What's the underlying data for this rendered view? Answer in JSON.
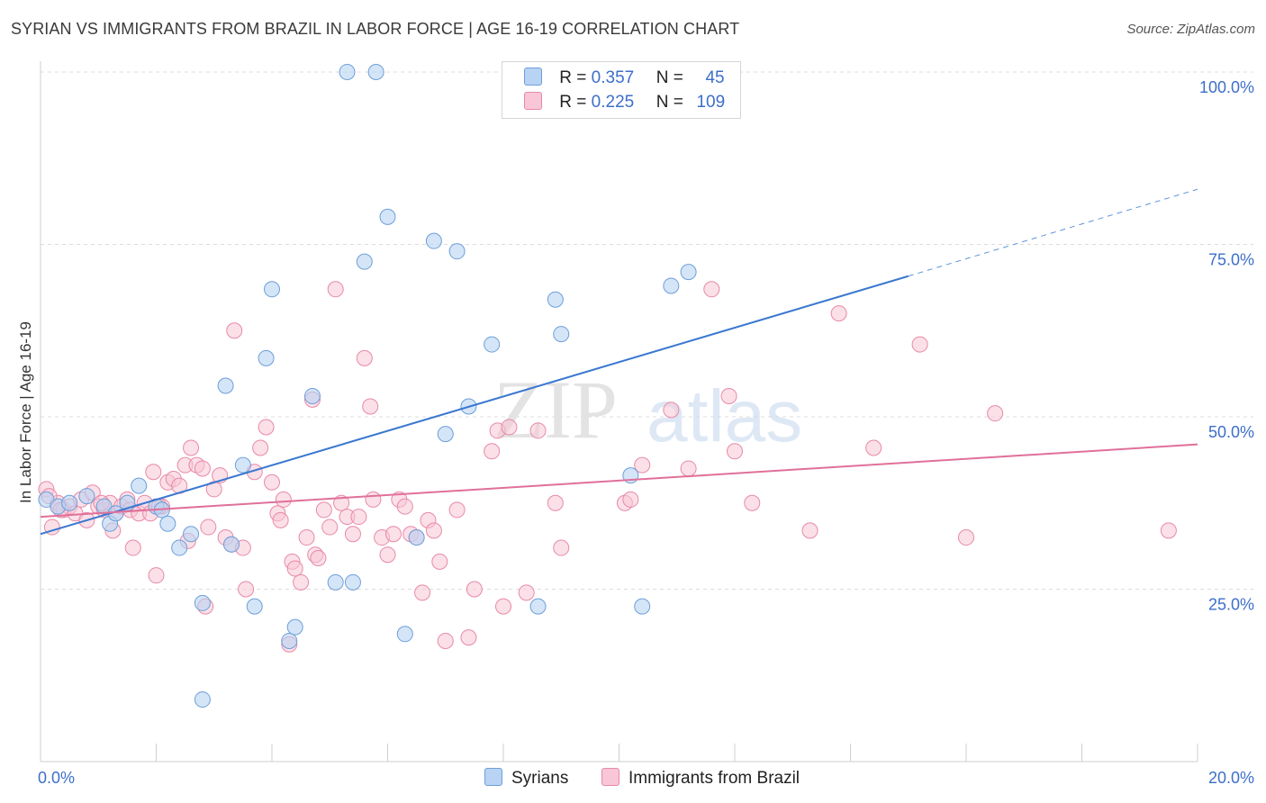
{
  "header": {
    "title": "SYRIAN VS IMMIGRANTS FROM BRAZIL IN LABOR FORCE | AGE 16-19 CORRELATION CHART",
    "source": "Source: ZipAtlas.com"
  },
  "colors": {
    "syrians_fill": "#b8d3f3",
    "syrians_stroke": "#6e9fd8",
    "syrians_line": "#3a78d0",
    "brazil_fill": "#f8c6d6",
    "brazil_stroke": "#e889a8",
    "brazil_line": "#e0709a",
    "tick_text": "#3d6fc9"
  },
  "legend": {
    "syrians": {
      "r_label": "R =",
      "r_value": "0.357",
      "n_label": "N =",
      "n_value": "45"
    },
    "brazil": {
      "r_label": "R =",
      "r_value": "0.225",
      "n_label": "N =",
      "n_value": "109"
    }
  },
  "bottom_legend": {
    "syrians": "Syrians",
    "brazil": "Immigrants from Brazil"
  },
  "watermark": {
    "zip": "ZIP",
    "atlas": "atlas"
  },
  "chart_data": {
    "type": "scatter",
    "title": "SYRIAN VS IMMIGRANTS FROM BRAZIL IN LABOR FORCE | AGE 16-19 CORRELATION CHART",
    "xlabel": "",
    "ylabel": "In Labor Force | Age 16-19",
    "xlim": [
      0,
      20
    ],
    "ylim": [
      0,
      100
    ],
    "x_tick_labels": [
      {
        "value": 0,
        "label": "0.0%"
      },
      {
        "value": 20,
        "label": "20.0%"
      }
    ],
    "y_tick_labels": [
      {
        "value": 25,
        "label": "25.0%"
      },
      {
        "value": 50,
        "label": "50.0%"
      },
      {
        "value": 75,
        "label": "75.0%"
      },
      {
        "value": 100,
        "label": "100.0%"
      }
    ],
    "series": [
      {
        "name": "Syrians",
        "r": 0.357,
        "n": 45,
        "trend": {
          "x0": 0,
          "y0": 33.0,
          "x1": 15.0,
          "y1": 70.4,
          "dashed_to_x": 20.0,
          "dashed_to_y": 83.0
        },
        "points": [
          [
            0.1,
            38.0
          ],
          [
            0.3,
            37.0
          ],
          [
            0.5,
            37.5
          ],
          [
            0.8,
            38.5
          ],
          [
            1.1,
            37.0
          ],
          [
            1.2,
            34.5
          ],
          [
            1.5,
            37.5
          ],
          [
            1.7,
            40.0
          ],
          [
            2.0,
            37.0
          ],
          [
            2.1,
            36.5
          ],
          [
            2.2,
            34.5
          ],
          [
            2.4,
            31.0
          ],
          [
            2.6,
            33.0
          ],
          [
            2.8,
            23.0
          ],
          [
            3.2,
            54.5
          ],
          [
            3.3,
            31.5
          ],
          [
            3.5,
            43.0
          ],
          [
            3.7,
            22.5
          ],
          [
            3.9,
            58.5
          ],
          [
            4.0,
            68.5
          ],
          [
            4.3,
            17.5
          ],
          [
            4.4,
            19.5
          ],
          [
            4.7,
            53.0
          ],
          [
            5.1,
            26.0
          ],
          [
            5.4,
            26.0
          ],
          [
            5.6,
            72.5
          ],
          [
            5.3,
            100.0
          ],
          [
            5.8,
            100.0
          ],
          [
            6.0,
            79.0
          ],
          [
            6.3,
            18.5
          ],
          [
            6.5,
            32.5
          ],
          [
            6.8,
            75.5
          ],
          [
            7.0,
            47.5
          ],
          [
            7.2,
            74.0
          ],
          [
            7.4,
            51.5
          ],
          [
            7.8,
            60.5
          ],
          [
            8.6,
            22.5
          ],
          [
            8.9,
            67.0
          ],
          [
            9.0,
            62.0
          ],
          [
            10.2,
            41.5
          ],
          [
            10.4,
            22.5
          ],
          [
            10.9,
            69.0
          ],
          [
            11.2,
            71.0
          ],
          [
            2.8,
            9.0
          ],
          [
            1.3,
            36.0
          ]
        ]
      },
      {
        "name": "Immigrants from Brazil",
        "r": 0.225,
        "n": 109,
        "trend": {
          "x0": 0,
          "y0": 35.5,
          "x1": 20.0,
          "y1": 46.0
        },
        "points": [
          [
            0.1,
            39.5
          ],
          [
            0.2,
            34.0
          ],
          [
            0.3,
            37.5
          ],
          [
            0.4,
            36.5
          ],
          [
            0.5,
            37.0
          ],
          [
            0.6,
            36.0
          ],
          [
            0.7,
            38.0
          ],
          [
            0.8,
            35.0
          ],
          [
            0.9,
            39.0
          ],
          [
            1.0,
            37.0
          ],
          [
            1.1,
            36.5
          ],
          [
            1.2,
            37.5
          ],
          [
            1.25,
            33.5
          ],
          [
            1.3,
            36.0
          ],
          [
            1.4,
            37.0
          ],
          [
            1.5,
            38.0
          ],
          [
            1.55,
            36.5
          ],
          [
            1.6,
            31.0
          ],
          [
            1.7,
            36.0
          ],
          [
            1.8,
            37.5
          ],
          [
            1.9,
            36.0
          ],
          [
            1.95,
            42.0
          ],
          [
            2.0,
            27.0
          ],
          [
            2.1,
            37.0
          ],
          [
            2.2,
            40.5
          ],
          [
            2.3,
            41.0
          ],
          [
            2.4,
            40.0
          ],
          [
            2.5,
            43.0
          ],
          [
            2.55,
            32.0
          ],
          [
            2.6,
            45.5
          ],
          [
            2.7,
            43.0
          ],
          [
            2.8,
            42.5
          ],
          [
            2.85,
            22.5
          ],
          [
            2.9,
            34.0
          ],
          [
            3.0,
            39.5
          ],
          [
            3.1,
            41.5
          ],
          [
            3.2,
            32.5
          ],
          [
            3.3,
            31.5
          ],
          [
            3.35,
            62.5
          ],
          [
            3.5,
            31.0
          ],
          [
            3.55,
            25.0
          ],
          [
            3.7,
            42.0
          ],
          [
            3.8,
            45.5
          ],
          [
            3.9,
            48.5
          ],
          [
            4.0,
            40.5
          ],
          [
            4.1,
            36.0
          ],
          [
            4.15,
            35.0
          ],
          [
            4.2,
            38.0
          ],
          [
            4.3,
            17.0
          ],
          [
            4.35,
            29.0
          ],
          [
            4.4,
            28.0
          ],
          [
            4.5,
            26.0
          ],
          [
            4.6,
            32.5
          ],
          [
            4.7,
            52.5
          ],
          [
            4.75,
            30.0
          ],
          [
            4.8,
            29.5
          ],
          [
            4.9,
            36.5
          ],
          [
            5.0,
            34.0
          ],
          [
            5.1,
            68.5
          ],
          [
            5.2,
            37.5
          ],
          [
            5.3,
            35.5
          ],
          [
            5.4,
            33.0
          ],
          [
            5.5,
            35.5
          ],
          [
            5.6,
            58.5
          ],
          [
            5.7,
            51.5
          ],
          [
            5.75,
            38.0
          ],
          [
            5.9,
            32.5
          ],
          [
            6.0,
            30.0
          ],
          [
            6.1,
            33.0
          ],
          [
            6.2,
            38.0
          ],
          [
            6.3,
            37.0
          ],
          [
            6.4,
            33.0
          ],
          [
            6.5,
            32.5
          ],
          [
            6.6,
            24.5
          ],
          [
            6.7,
            35.0
          ],
          [
            6.8,
            33.5
          ],
          [
            6.9,
            29.0
          ],
          [
            7.0,
            17.5
          ],
          [
            7.2,
            36.5
          ],
          [
            7.4,
            18.0
          ],
          [
            7.5,
            25.0
          ],
          [
            7.8,
            45.0
          ],
          [
            7.9,
            48.0
          ],
          [
            8.0,
            22.5
          ],
          [
            8.1,
            48.5
          ],
          [
            8.4,
            24.5
          ],
          [
            8.6,
            48.0
          ],
          [
            8.9,
            37.5
          ],
          [
            9.0,
            31.0
          ],
          [
            10.1,
            37.5
          ],
          [
            10.2,
            38.0
          ],
          [
            10.4,
            43.0
          ],
          [
            10.9,
            51.0
          ],
          [
            11.2,
            42.5
          ],
          [
            11.6,
            68.5
          ],
          [
            11.9,
            53.0
          ],
          [
            12.0,
            45.0
          ],
          [
            12.3,
            37.5
          ],
          [
            13.3,
            33.5
          ],
          [
            13.8,
            65.0
          ],
          [
            14.4,
            45.5
          ],
          [
            15.2,
            60.5
          ],
          [
            16.0,
            32.5
          ],
          [
            16.5,
            50.5
          ],
          [
            19.5,
            33.5
          ],
          [
            0.15,
            38.5
          ],
          [
            0.35,
            36.5
          ],
          [
            1.05,
            37.5
          ],
          [
            2.05,
            37.0
          ]
        ]
      }
    ]
  }
}
